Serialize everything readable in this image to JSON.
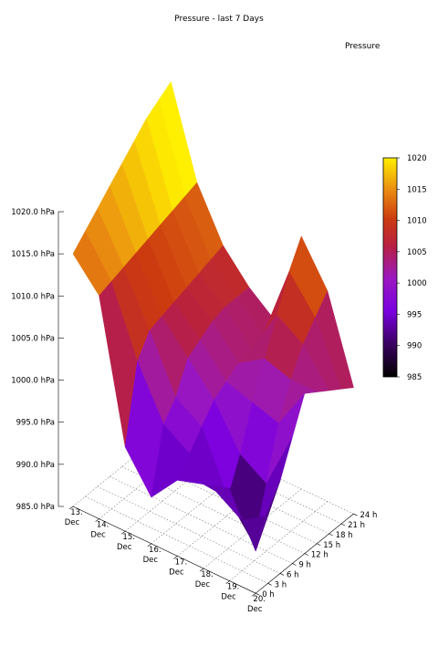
{
  "chart_data": {
    "type": "surface3d",
    "title": "Pressure - last 7 Days",
    "series_name": "Pressure",
    "z_ticks": [
      "985.0 hPa",
      "990.0 hPa",
      "995.0 hPa",
      "1000.0 hPa",
      "1005.0 hPa",
      "1010.0 hPa",
      "1015.0 hPa",
      "1020.0 hPa"
    ],
    "zlim": [
      985,
      1020
    ],
    "day_ticks": [
      {
        "day": "13.",
        "month": "Dec"
      },
      {
        "day": "14.",
        "month": "Dec"
      },
      {
        "day": "15.",
        "month": "Dec"
      },
      {
        "day": "16.",
        "month": "Dec"
      },
      {
        "day": "17.",
        "month": "Dec"
      },
      {
        "day": "18.",
        "month": "Dec"
      },
      {
        "day": "19.",
        "month": "Dec"
      },
      {
        "day": "20.",
        "month": "Dec"
      }
    ],
    "hour_ticks": [
      "0 h",
      "3 h",
      "6 h",
      "9 h",
      "12 h",
      "15 h",
      "18 h",
      "21 h",
      "24 h"
    ],
    "colorbar_ticks": [
      "985",
      "990",
      "995",
      "1000",
      "1005",
      "1010",
      "1015",
      "1020"
    ],
    "colorbar_range": [
      985,
      1020
    ],
    "grid": true,
    "legend_position": "top-right",
    "surface_rows": [
      {
        "day": 13,
        "values": [
          1015.0,
          1016.5,
          1018.0,
          1019.5,
          1021.0,
          1022.5,
          1024.0,
          1025.0,
          1026.0
        ]
      },
      {
        "day": 14,
        "values": [
          1011.5,
          1012.0,
          1012.5,
          1013.0,
          1013.5,
          1014.0,
          1014.5,
          1015.0,
          1015.5
        ]
      },
      {
        "day": 15,
        "values": [
          995.0,
          1004.0,
          1006.5,
          1007.0,
          1007.5,
          1008.0,
          1008.5,
          1009.0,
          1009.5
        ]
      },
      {
        "day": 16,
        "values": [
          990.5,
          998.0,
          1000.0,
          1003.5,
          1004.5,
          1005.5,
          1006.0,
          1006.0,
          1006.0
        ]
      },
      {
        "day": 17,
        "values": [
          994.0,
          996.0,
          998.0,
          1000.0,
          1001.0,
          1002.0,
          1002.5,
          1003.0,
          1003.5
        ]
      },
      {
        "day": 18,
        "values": [
          995.0,
          993.0,
          991.0,
          995.0,
          1000.0,
          1004.0,
          1008.0,
          1012.0,
          1015.0
        ]
      },
      {
        "day": 19,
        "values": [
          996.0,
          991.0,
          987.0,
          993.0,
          999.0,
          1003.0,
          1006.0,
          1008.0,
          1010.0
        ]
      },
      {
        "day": 20,
        "values": [
          990.0,
          993.0,
          996.0,
          1000.0,
          1004.0,
          1003.0,
          1002.0,
          1001.0,
          1000.0
        ]
      }
    ]
  }
}
